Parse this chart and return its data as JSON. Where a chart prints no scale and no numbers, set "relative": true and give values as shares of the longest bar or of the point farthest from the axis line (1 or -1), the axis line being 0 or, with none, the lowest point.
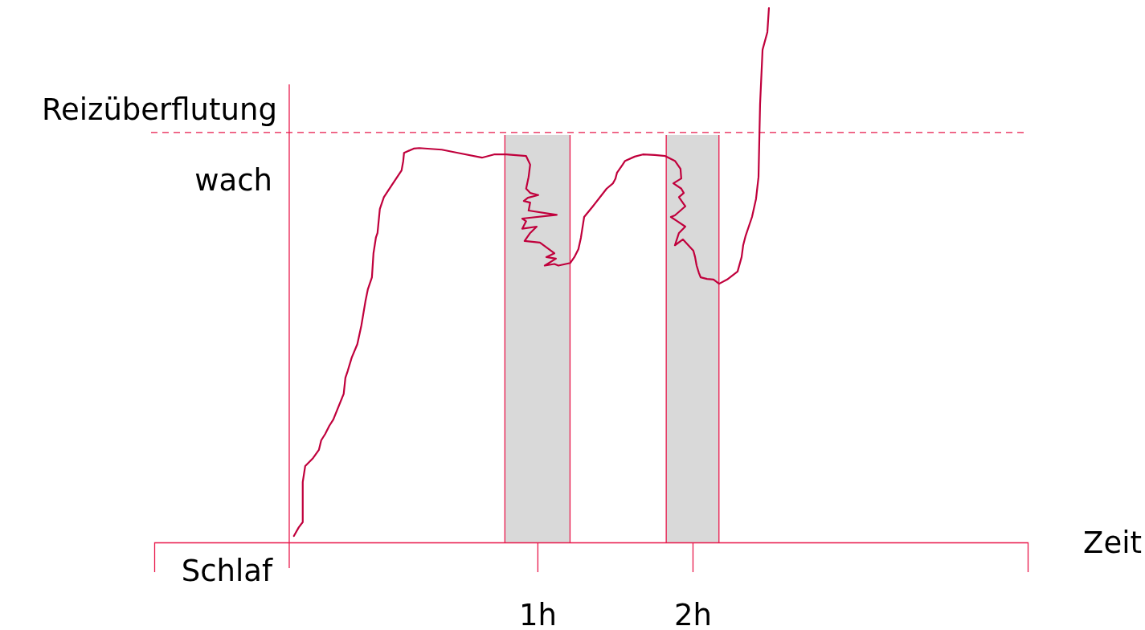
{
  "chart_data": {
    "type": "line",
    "xlabel": "Zeit",
    "relative": true,
    "xlim": [
      -1.47,
      4.16
    ],
    "xticks": [
      {
        "value": 1,
        "label": "1h"
      },
      {
        "value": 2,
        "label": "2h"
      }
    ],
    "marker": "none",
    "line_style": "solid",
    "annotations": [
      "wach",
      "Schlaf"
    ],
    "ref_lines": [
      {
        "axis": "y",
        "value": 0.767,
        "line_style": "dashed",
        "color": "#e8174a",
        "label": "Reizüberflutung"
      },
      {
        "axis": "x",
        "value": -0.6,
        "line_style": "solid",
        "color": "#e8174a"
      }
    ],
    "bands": [
      {
        "axis": "x",
        "from": 0.79,
        "to": 1.21,
        "color": "#d9d9d9"
      },
      {
        "axis": "x",
        "from": 1.83,
        "to": 2.17,
        "color": "#d9d9d9"
      }
    ],
    "series": [
      {
        "color": "#c0003c",
        "x": [
          -0.57,
          -0.539,
          -0.513,
          -0.513,
          -0.497,
          -0.446,
          -0.409,
          -0.394,
          -0.368,
          -0.342,
          -0.316,
          -0.249,
          -0.238,
          -0.223,
          -0.197,
          -0.161,
          -0.135,
          -0.109,
          -0.093,
          -0.067,
          -0.057,
          -0.041,
          -0.031,
          -0.016,
          0.01,
          0.062,
          0.124,
          0.135,
          0.14,
          0.202,
          0.238,
          0.383,
          0.487,
          0.642,
          0.72,
          0.798,
          0.927,
          0.953,
          0.943,
          0.927,
          0.953,
          1.005,
          0.938,
          0.912,
          0.953,
          0.943,
          1.124,
          0.902,
          0.927,
          0.902,
          0.995,
          0.953,
          0.917,
          1.016,
          1.109,
          1.057,
          1.119,
          1.047,
          1.109,
          1.135,
          1.212,
          1.238,
          1.264,
          1.28,
          1.301,
          1.352,
          1.446,
          1.487,
          1.503,
          1.513,
          1.549,
          1.565,
          1.627,
          1.679,
          1.756,
          1.824,
          1.886,
          1.922,
          1.927,
          1.876,
          1.927,
          1.943,
          1.912,
          1.953,
          1.886,
          1.86,
          1.902,
          1.953,
          1.912,
          1.886,
          1.938,
          2.005,
          2.016,
          2.026,
          2.041,
          2.052,
          2.093,
          2.135,
          2.171,
          2.223,
          2.29,
          2.316,
          2.326,
          2.342,
          2.383,
          2.409,
          2.425,
          2.435,
          2.451,
          2.482,
          2.492
        ],
        "values": [
          0.012,
          0.028,
          0.038,
          0.113,
          0.143,
          0.158,
          0.173,
          0.191,
          0.203,
          0.218,
          0.23,
          0.278,
          0.308,
          0.321,
          0.346,
          0.371,
          0.406,
          0.451,
          0.474,
          0.496,
          0.541,
          0.571,
          0.579,
          0.624,
          0.646,
          0.669,
          0.696,
          0.714,
          0.729,
          0.737,
          0.738,
          0.735,
          0.729,
          0.72,
          0.726,
          0.726,
          0.723,
          0.707,
          0.684,
          0.662,
          0.654,
          0.65,
          0.645,
          0.639,
          0.636,
          0.621,
          0.613,
          0.606,
          0.601,
          0.587,
          0.591,
          0.579,
          0.564,
          0.561,
          0.541,
          0.534,
          0.531,
          0.518,
          0.521,
          0.518,
          0.523,
          0.534,
          0.549,
          0.57,
          0.609,
          0.627,
          0.662,
          0.672,
          0.681,
          0.692,
          0.707,
          0.714,
          0.722,
          0.726,
          0.725,
          0.723,
          0.714,
          0.699,
          0.681,
          0.672,
          0.662,
          0.654,
          0.646,
          0.629,
          0.612,
          0.609,
          0.601,
          0.591,
          0.579,
          0.556,
          0.567,
          0.546,
          0.534,
          0.518,
          0.504,
          0.496,
          0.493,
          0.492,
          0.484,
          0.492,
          0.507,
          0.534,
          0.556,
          0.574,
          0.609,
          0.643,
          0.684,
          0.82,
          0.922,
          0.955,
          1
        ]
      }
    ]
  }
}
